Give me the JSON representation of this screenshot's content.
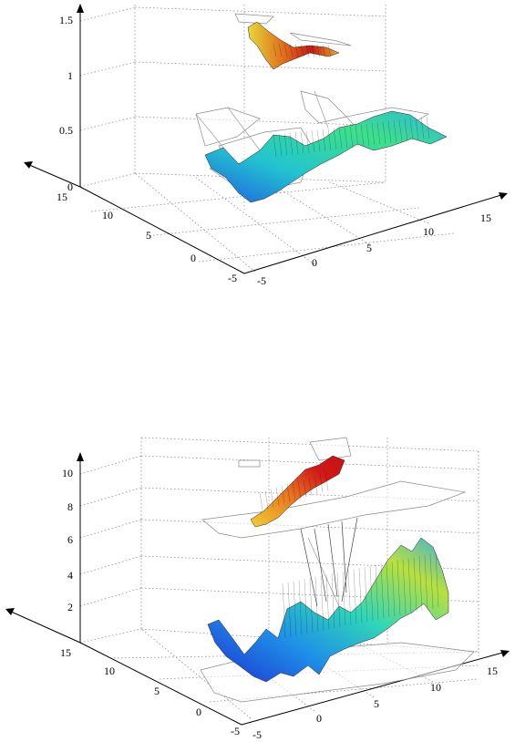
{
  "chart_data": [
    {
      "type": "surface",
      "panel": "top",
      "z_ticks": [
        "0",
        "0.5",
        "1",
        "1.5"
      ],
      "x_ticks": [
        "-5",
        "0",
        "5",
        "10",
        "15"
      ],
      "y_ticks": [
        "-5",
        "0",
        "5",
        "10",
        "15"
      ],
      "zlim": [
        0,
        1.6
      ],
      "xlim": [
        -5,
        17
      ],
      "ylim": [
        -5,
        17
      ],
      "grid": true,
      "colormap": [
        "#1f3fd6",
        "#1e90e8",
        "#22d4c8",
        "#3ee08a",
        "#c8e43a",
        "#f0b020",
        "#e8401c",
        "#c81010"
      ]
    },
    {
      "type": "surface",
      "panel": "bottom",
      "z_ticks": [
        "2",
        "4",
        "6",
        "8",
        "10"
      ],
      "x_ticks": [
        "-5",
        "0",
        "5",
        "10",
        "15"
      ],
      "y_ticks": [
        "-5",
        "0",
        "5",
        "10",
        "15"
      ],
      "zlim": [
        0,
        11
      ],
      "xlim": [
        -5,
        17
      ],
      "ylim": [
        -5,
        17
      ],
      "grid": true,
      "colormap": [
        "#1f3fd6",
        "#1e90e8",
        "#22d4c8",
        "#3ee08a",
        "#c8e43a",
        "#f0b020",
        "#e8401c",
        "#c81010"
      ]
    }
  ]
}
